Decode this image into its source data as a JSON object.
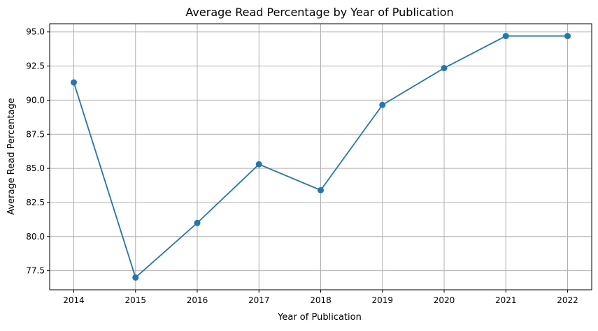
{
  "chart_data": {
    "type": "line",
    "title": "Average Read Percentage by Year of Publication",
    "xlabel": "Year of Publication",
    "ylabel": "Average Read Percentage",
    "categories": [
      "2014",
      "2015",
      "2016",
      "2017",
      "2018",
      "2019",
      "2020",
      "2021",
      "2022"
    ],
    "series": [
      {
        "values": [
          91.3,
          77.0,
          81.0,
          85.3,
          83.4,
          89.65,
          92.35,
          94.7,
          94.7
        ],
        "color": "#1f77b4",
        "marker": "circle"
      }
    ],
    "yticks": [
      "77.5",
      "80.0",
      "82.5",
      "85.0",
      "87.5",
      "90.0",
      "92.5",
      "95.0"
    ],
    "ylim": [
      76.1,
      95.6
    ],
    "grid": true,
    "legend": false
  }
}
